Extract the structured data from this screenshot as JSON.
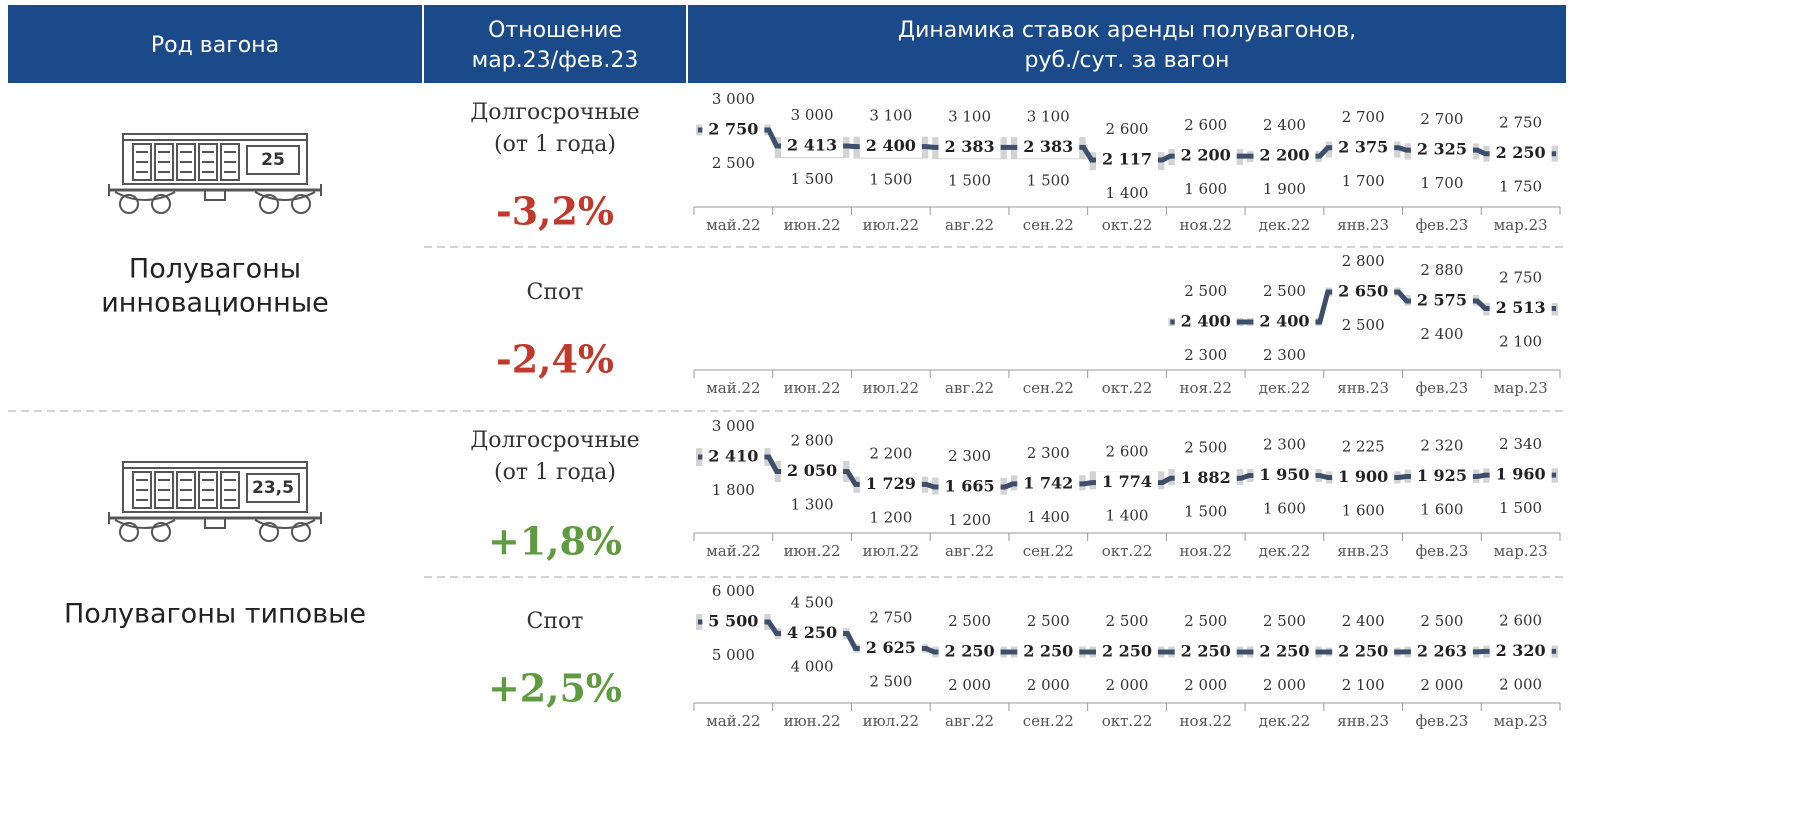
{
  "header": {
    "wagon_type": "Род вагона",
    "ratio": [
      "Отношение",
      "мар.23/фев.23"
    ],
    "dynamics": [
      "Динамика ставок аренды полувагонов,",
      "руб./сут. за вагон"
    ]
  },
  "groups": [
    {
      "name": [
        "Полувагоны",
        "инновационные"
      ],
      "badge": "25",
      "rows": [
        {
          "term": [
            "Долгосрочные",
            "(от 1 года)"
          ],
          "change": "-3,2%",
          "color": "#c0392b",
          "chart": {
            "type": "range-line",
            "color": "#3d4f6b",
            "band_color": "#d3d3d3",
            "categories": [
              "май.22",
              "июн.22",
              "июл.22",
              "авг.22",
              "сен.22",
              "окт.22",
              "ноя.22",
              "дек.22",
              "янв.23",
              "фев.23",
              "мар.23"
            ],
            "values": [
              2750,
              2413,
              2400,
              2383,
              2383,
              2117,
              2200,
              2200,
              2375,
              2325,
              2250
            ],
            "value_labels": [
              "2 750",
              "2 413",
              "2 400",
              "2 383",
              "2 383",
              "2 117",
              "2 200",
              "2 200",
              "2 375",
              "2 325",
              "2 250"
            ],
            "high": [
              3000,
              3000,
              3100,
              3100,
              3100,
              2600,
              2600,
              2400,
              2700,
              2700,
              2750
            ],
            "high_labels": [
              "3 000",
              "3 000",
              "3 100",
              "3 100",
              "3 100",
              "2 600",
              "2 600",
              "2 400",
              "2 700",
              "2 700",
              "2 750"
            ],
            "low": [
              2500,
              1500,
              1500,
              1500,
              1500,
              1400,
              1600,
              1900,
              1700,
              1700,
              1750
            ],
            "low_labels": [
              "2 500",
              "1 500",
              "1 500",
              "1 500",
              "1 500",
              "1 400",
              "1 600",
              "1 900",
              "1 700",
              "1 700",
              "1 750"
            ]
          }
        },
        {
          "term": [
            "Спот"
          ],
          "change": "-2,4%",
          "color": "#c0392b",
          "chart": {
            "type": "range-line",
            "color": "#3d4f6b",
            "band_color": "#d3d3d3",
            "categories": [
              "май.22",
              "июн.22",
              "июл.22",
              "авг.22",
              "сен.22",
              "окт.22",
              "ноя.22",
              "дек.22",
              "янв.23",
              "фев.23",
              "мар.23"
            ],
            "values": [
              null,
              null,
              null,
              null,
              null,
              null,
              2400,
              2400,
              2650,
              2575,
              2513
            ],
            "value_labels": [
              null,
              null,
              null,
              null,
              null,
              null,
              "2 400",
              "2 400",
              "2 650",
              "2 575",
              "2 513"
            ],
            "high": [
              null,
              null,
              null,
              null,
              null,
              null,
              2500,
              2500,
              2800,
              2880,
              2750
            ],
            "high_labels": [
              null,
              null,
              null,
              null,
              null,
              null,
              "2 500",
              "2 500",
              "2 800",
              "2 880",
              "2 750"
            ],
            "low": [
              null,
              null,
              null,
              null,
              null,
              null,
              2300,
              2300,
              2500,
              2400,
              2100
            ],
            "low_labels": [
              null,
              null,
              null,
              null,
              null,
              null,
              "2 300",
              "2 300",
              "2 500",
              "2 400",
              "2 100"
            ]
          }
        }
      ]
    },
    {
      "name": [
        "Полувагоны типовые"
      ],
      "badge": "23,5",
      "rows": [
        {
          "term": [
            "Долгосрочные",
            "(от 1 года)"
          ],
          "change": "+1,8%",
          "color": "#5f9b3f",
          "chart": {
            "type": "range-line",
            "color": "#3d4f6b",
            "band_color": "#d3d3d3",
            "categories": [
              "май.22",
              "июн.22",
              "июл.22",
              "авг.22",
              "сен.22",
              "окт.22",
              "ноя.22",
              "дек.22",
              "янв.23",
              "фев.23",
              "мар.23"
            ],
            "values": [
              2410,
              2050,
              1729,
              1665,
              1742,
              1774,
              1882,
              1950,
              1900,
              1925,
              1960
            ],
            "value_labels": [
              "2 410",
              "2 050",
              "1 729",
              "1 665",
              "1 742",
              "1 774",
              "1 882",
              "1 950",
              "1 900",
              "1 925",
              "1 960"
            ],
            "high": [
              3000,
              2800,
              2200,
              2300,
              2300,
              2600,
              2500,
              2300,
              2225,
              2320,
              2340
            ],
            "high_labels": [
              "3 000",
              "2 800",
              "2 200",
              "2 300",
              "2 300",
              "2 600",
              "2 500",
              "2 300",
              "2 225",
              "2 320",
              "2 340"
            ],
            "low": [
              1800,
              1300,
              1200,
              1200,
              1400,
              1400,
              1500,
              1600,
              1600,
              1600,
              1500
            ],
            "low_labels": [
              "1 800",
              "1 300",
              "1 200",
              "1 200",
              "1 400",
              "1 400",
              "1 500",
              "1 600",
              "1 600",
              "1 600",
              "1 500"
            ]
          }
        },
        {
          "term": [
            "Спот"
          ],
          "change": "+2,5%",
          "color": "#5f9b3f",
          "chart": {
            "type": "range-line",
            "color": "#3d4f6b",
            "band_color": "#d3d3d3",
            "categories": [
              "май.22",
              "июн.22",
              "июл.22",
              "авг.22",
              "сен.22",
              "окт.22",
              "ноя.22",
              "дек.22",
              "янв.23",
              "фев.23",
              "мар.23"
            ],
            "values": [
              5500,
              4250,
              2625,
              2250,
              2250,
              2250,
              2250,
              2250,
              2250,
              2263,
              2320
            ],
            "value_labels": [
              "5 500",
              "4 250",
              "2 625",
              "2 250",
              "2 250",
              "2 250",
              "2 250",
              "2 250",
              "2 250",
              "2 263",
              "2 320"
            ],
            "high": [
              6000,
              4500,
              2750,
              2500,
              2500,
              2500,
              2500,
              2500,
              2400,
              2500,
              2600
            ],
            "high_labels": [
              "6 000",
              "4 500",
              "2 750",
              "2 500",
              "2 500",
              "2 500",
              "2 500",
              "2 500",
              "2 400",
              "2 500",
              "2 600"
            ],
            "low": [
              5000,
              4000,
              2500,
              2000,
              2000,
              2000,
              2000,
              2000,
              2100,
              2000,
              2000
            ],
            "low_labels": [
              "5 000",
              "4 000",
              "2 500",
              "2 000",
              "2 000",
              "2 000",
              "2 000",
              "2 000",
              "2 100",
              "2 000",
              "2 000"
            ]
          }
        }
      ]
    }
  ]
}
